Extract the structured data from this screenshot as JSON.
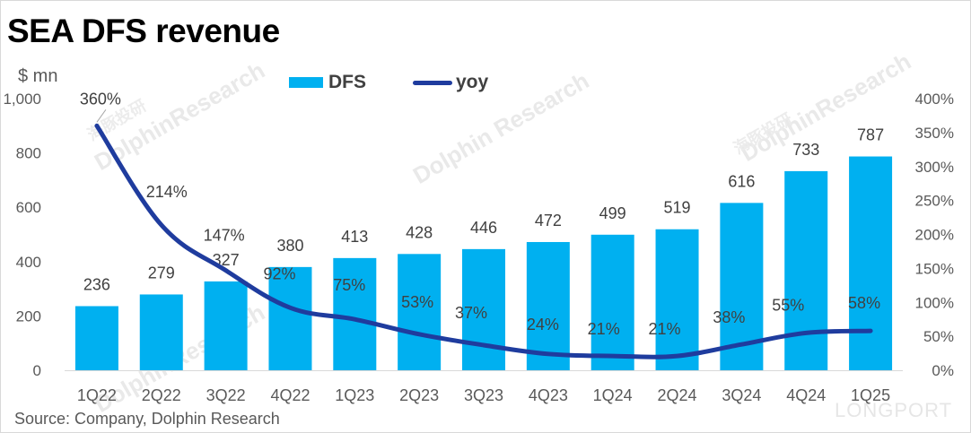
{
  "title": "SEA DFS revenue",
  "unit_label": "$ mn",
  "source": "Source: Company, Dolphin Research",
  "watermark": {
    "brand": "DolphinResearch",
    "brand_spaced": "Dolphin Research",
    "cn": "海豚投研",
    "longport": "LONGPORT"
  },
  "colors": {
    "bar": "#00b0f0",
    "line": "#1f3c9e",
    "axis_text": "#595959",
    "label_text": "#404040"
  },
  "chart_data": {
    "type": "bar",
    "categories": [
      "1Q22",
      "2Q22",
      "3Q22",
      "4Q22",
      "1Q23",
      "2Q23",
      "3Q23",
      "4Q23",
      "1Q24",
      "2Q24",
      "3Q24",
      "4Q24",
      "1Q25"
    ],
    "series": [
      {
        "name": "DFS",
        "type": "bar",
        "axis": "left",
        "values": [
          236,
          279,
          327,
          380,
          413,
          428,
          446,
          472,
          499,
          519,
          616,
          733,
          787
        ]
      },
      {
        "name": "yoy",
        "type": "line",
        "axis": "right",
        "values": [
          360,
          214,
          147,
          92,
          75,
          53,
          37,
          24,
          21,
          21,
          38,
          55,
          58
        ]
      }
    ],
    "y_left": {
      "ylim": [
        0,
        1000
      ],
      "ticks": [
        0,
        200,
        400,
        600,
        800,
        1000
      ],
      "tick_labels": [
        "0",
        "200",
        "400",
        "600",
        "800",
        "1,000"
      ]
    },
    "y_right": {
      "ylim": [
        0,
        400
      ],
      "ticks": [
        0,
        50,
        100,
        150,
        200,
        250,
        300,
        350,
        400
      ],
      "tick_labels": [
        "0%",
        "50%",
        "100%",
        "150%",
        "200%",
        "250%",
        "300%",
        "350%",
        "400%"
      ]
    },
    "bar_labels": [
      "236",
      "279",
      "327",
      "380",
      "413",
      "428",
      "446",
      "472",
      "499",
      "519",
      "616",
      "733",
      "787"
    ],
    "line_labels": [
      "360%",
      "214%",
      "147%",
      "92%",
      "75%",
      "53%",
      "37%",
      "24%",
      "21%",
      "21%",
      "38%",
      "55%",
      "58%"
    ],
    "legend": "top",
    "grid": false
  }
}
